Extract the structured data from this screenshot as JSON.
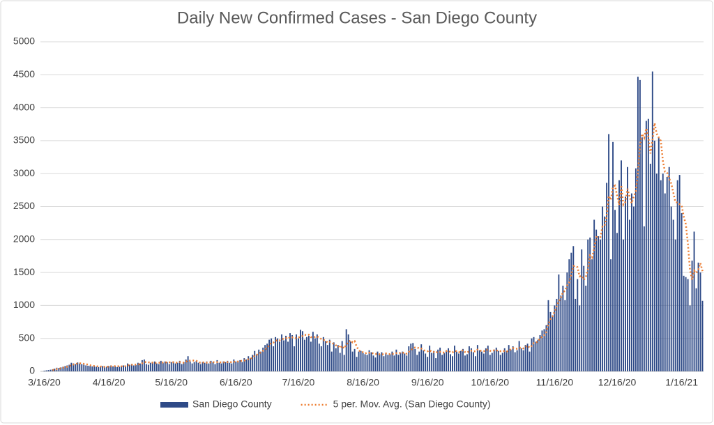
{
  "chart_data": {
    "type": "bar",
    "title": "Daily New Confirmed Cases - San Diego County",
    "categories": [
      "3/16/20",
      null,
      null,
      null,
      null,
      null,
      null,
      null,
      null,
      null,
      null,
      null,
      null,
      null,
      null,
      null,
      null,
      null,
      null,
      null,
      null,
      null,
      null,
      null,
      null,
      null,
      null,
      null,
      null,
      null,
      null,
      "4/16/20",
      null,
      null,
      null,
      null,
      null,
      null,
      null,
      null,
      null,
      null,
      null,
      null,
      null,
      null,
      null,
      null,
      null,
      null,
      null,
      null,
      null,
      null,
      null,
      null,
      null,
      null,
      null,
      null,
      null,
      "5/16/20",
      null,
      null,
      null,
      null,
      null,
      null,
      null,
      null,
      null,
      null,
      null,
      null,
      null,
      null,
      null,
      null,
      null,
      null,
      null,
      null,
      null,
      null,
      null,
      null,
      null,
      null,
      null,
      null,
      null,
      null,
      "6/16/20",
      null,
      null,
      null,
      null,
      null,
      null,
      null,
      null,
      null,
      null,
      null,
      null,
      null,
      null,
      null,
      null,
      null,
      null,
      null,
      null,
      null,
      null,
      null,
      null,
      null,
      null,
      null,
      null,
      null,
      "7/16/20",
      null,
      null,
      null,
      null,
      null,
      null,
      null,
      null,
      null,
      null,
      null,
      null,
      null,
      null,
      null,
      null,
      null,
      null,
      null,
      null,
      null,
      null,
      null,
      null,
      null,
      null,
      null,
      null,
      null,
      null,
      "8/16/20",
      null,
      null,
      null,
      null,
      null,
      null,
      null,
      null,
      null,
      null,
      null,
      null,
      null,
      null,
      null,
      null,
      null,
      null,
      null,
      null,
      null,
      null,
      null,
      null,
      null,
      null,
      null,
      null,
      null,
      null,
      "9/16/20",
      null,
      null,
      null,
      null,
      null,
      null,
      null,
      null,
      null,
      null,
      null,
      null,
      null,
      null,
      null,
      null,
      null,
      null,
      null,
      null,
      null,
      null,
      null,
      null,
      null,
      null,
      null,
      null,
      null,
      "10/16/20",
      null,
      null,
      null,
      null,
      null,
      null,
      null,
      null,
      null,
      null,
      null,
      null,
      null,
      null,
      null,
      null,
      null,
      null,
      null,
      null,
      null,
      null,
      null,
      null,
      null,
      null,
      null,
      null,
      null,
      null,
      "11/16/20",
      null,
      null,
      null,
      null,
      null,
      null,
      null,
      null,
      null,
      null,
      null,
      null,
      null,
      null,
      null,
      null,
      null,
      null,
      null,
      null,
      null,
      null,
      null,
      null,
      null,
      null,
      null,
      null,
      null,
      "12/16/20",
      null,
      null,
      null,
      null,
      null,
      null,
      null,
      null,
      null,
      null,
      null,
      null,
      null,
      null,
      null,
      null,
      null,
      null,
      null,
      null,
      null,
      null,
      null,
      null,
      null,
      null,
      null,
      null,
      null,
      null,
      "1/16/21",
      null,
      null,
      null,
      null,
      null,
      null,
      null,
      null,
      null,
      null
    ],
    "series": [
      {
        "name": "San Diego County",
        "color": "#2e4a87",
        "type": "bar",
        "values": [
          10,
          15,
          20,
          25,
          30,
          40,
          55,
          50,
          60,
          70,
          80,
          90,
          100,
          130,
          120,
          110,
          135,
          120,
          110,
          100,
          90,
          85,
          80,
          75,
          80,
          70,
          65,
          75,
          80,
          60,
          70,
          80,
          90,
          75,
          80,
          65,
          70,
          85,
          90,
          80,
          120,
          100,
          110,
          90,
          95,
          130,
          120,
          170,
          180,
          110,
          100,
          130,
          140,
          150,
          120,
          110,
          160,
          130,
          150,
          140,
          110,
          140,
          150,
          120,
          130,
          160,
          110,
          140,
          180,
          230,
          150,
          120,
          140,
          160,
          130,
          110,
          140,
          130,
          150,
          120,
          160,
          140,
          110,
          170,
          130,
          120,
          150,
          140,
          160,
          130,
          120,
          180,
          150,
          160,
          170,
          140,
          200,
          180,
          230,
          200,
          250,
          310,
          260,
          330,
          300,
          360,
          400,
          420,
          480,
          500,
          380,
          520,
          500,
          450,
          560,
          470,
          540,
          450,
          580,
          550,
          380,
          560,
          500,
          630,
          610,
          480,
          520,
          540,
          450,
          600,
          500,
          560,
          420,
          380,
          520,
          460,
          400,
          480,
          300,
          440,
          350,
          400,
          280,
          460,
          250,
          640,
          560,
          450,
          300,
          340,
          220,
          300,
          310,
          280,
          260,
          250,
          320,
          290,
          240,
          210,
          300,
          260,
          290,
          230,
          280,
          250,
          260,
          300,
          240,
          330,
          250,
          280,
          300,
          270,
          240,
          380,
          420,
          430,
          340,
          250,
          300,
          410,
          320,
          270,
          220,
          390,
          280,
          310,
          200,
          330,
          360,
          250,
          280,
          320,
          350,
          260,
          230,
          390,
          300,
          270,
          310,
          340,
          240,
          260,
          380,
          350,
          290,
          230,
          400,
          320,
          300,
          270,
          350,
          390,
          250,
          280,
          330,
          360,
          310,
          250,
          280,
          350,
          310,
          400,
          330,
          380,
          290,
          320,
          460,
          350,
          320,
          400,
          420,
          300,
          500,
          520,
          450,
          480,
          550,
          620,
          640,
          700,
          1080,
          900,
          850,
          1000,
          1100,
          1470,
          1150,
          1300,
          1080,
          1500,
          1700,
          1800,
          1900,
          1100,
          1400,
          1000,
          1850,
          1600,
          1300,
          2000,
          2030,
          1700,
          2300,
          2150,
          2050,
          2000,
          2500,
          2350,
          2860,
          3600,
          1700,
          3480,
          2450,
          2100,
          2900,
          3200,
          2000,
          2650,
          3100,
          2300,
          2700,
          2500,
          3080,
          4470,
          4420,
          3550,
          2200,
          3800,
          3830,
          3150,
          4550,
          3500,
          3000,
          3540,
          2900,
          3000,
          2700,
          2950,
          3100,
          2500,
          2300,
          2000,
          2900,
          2980,
          2400,
          1450,
          1430,
          1400,
          1000,
          1680,
          2120,
          1260,
          1650,
          1500,
          1070
        ]
      },
      {
        "name": "5 per. Mov. Avg. (San Diego County)",
        "color": "#ed7d31",
        "type": "line",
        "line_style": "dotted",
        "values": [
          null,
          null,
          null,
          null,
          20,
          26,
          34,
          40,
          47,
          55,
          63,
          70,
          80,
          94,
          104,
          110,
          119,
          123,
          119,
          115,
          111,
          101,
          93,
          86,
          82,
          78,
          74,
          73,
          74,
          70,
          70,
          73,
          76,
          75,
          79,
          78,
          76,
          75,
          78,
          78,
          89,
          95,
          100,
          100,
          103,
          105,
          109,
          121,
          139,
          142,
          136,
          138,
          132,
          126,
          128,
          130,
          136,
          134,
          134,
          138,
          138,
          134,
          138,
          132,
          130,
          140,
          134,
          132,
          144,
          164,
          162,
          164,
          164,
          160,
          140,
          132,
          136,
          134,
          132,
          130,
          140,
          140,
          136,
          140,
          142,
          134,
          136,
          142,
          140,
          140,
          140,
          146,
          148,
          148,
          156,
          160,
          164,
          170,
          184,
          190,
          212,
          234,
          250,
          270,
          290,
          312,
          330,
          362,
          392,
          432,
          436,
          460,
          476,
          470,
          482,
          500,
          504,
          494,
          520,
          518,
          500,
          504,
          514,
          524,
          536,
          556,
          548,
          556,
          520,
          518,
          522,
          530,
          506,
          492,
          476,
          468,
          436,
          448,
          432,
          416,
          394,
          394,
          354,
          386,
          348,
          406,
          438,
          472,
          440,
          458,
          374,
          322,
          294,
          290,
          274,
          280,
          284,
          280,
          272,
          262,
          272,
          260,
          260,
          258,
          272,
          262,
          262,
          264,
          266,
          276,
          276,
          280,
          280,
          286,
          268,
          294,
          322,
          348,
          362,
          364,
          348,
          346,
          324,
          310,
          304,
          322,
          296,
          294,
          280,
          302,
          296,
          290,
          284,
          308,
          312,
          292,
          288,
          310,
          306,
          290,
          300,
          322,
          292,
          284,
          306,
          314,
          304,
          302,
          330,
          318,
          308,
          304,
          328,
          326,
          312,
          308,
          320,
          322,
          306,
          306,
          306,
          310,
          300,
          318,
          334,
          354,
          342,
          344,
          356,
          360,
          348,
          370,
          390,
          358,
          388,
          428,
          438,
          450,
          500,
          524,
          548,
          598,
          718,
          788,
          834,
          906,
          986,
          1064,
          1114,
          1204,
          1220,
          1300,
          1346,
          1476,
          1596,
          1600,
          1580,
          1440,
          1450,
          1390,
          1430,
          1550,
          1756,
          1726,
          1866,
          2036,
          2046,
          2040,
          2200,
          2210,
          2352,
          2662,
          2602,
          2798,
          2818,
          2666,
          2526,
          2826,
          2530,
          2570,
          2770,
          2650,
          2550,
          2650,
          2736,
          3010,
          3434,
          3604,
          3544,
          3688,
          3560,
          3306,
          3506,
          3766,
          3606,
          3548,
          3498,
          3188,
          3028,
          3018,
          2930,
          2850,
          2710,
          2570,
          2560,
          2536,
          2516,
          2346,
          2232,
          1932,
          1536,
          1392,
          1526,
          1492,
          1542,
          1642,
          1520
        ]
      }
    ],
    "ylim": [
      0,
      5000
    ],
    "yticks": [
      0,
      500,
      1000,
      1500,
      2000,
      2500,
      3000,
      3500,
      4000,
      4500,
      5000
    ],
    "grid": true,
    "legend": "bottom"
  }
}
